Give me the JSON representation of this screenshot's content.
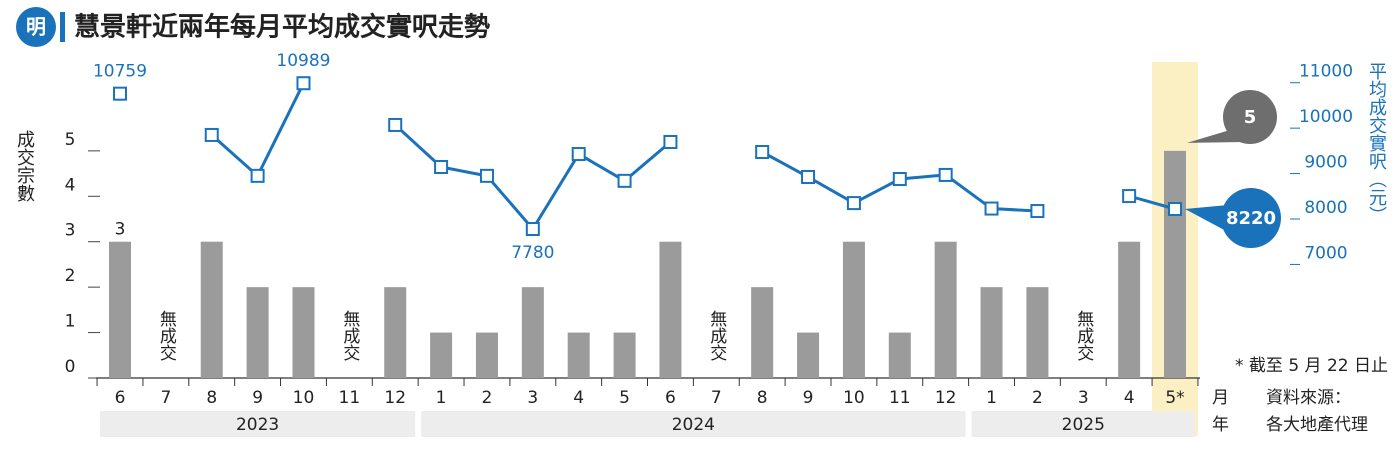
{
  "logo": "明",
  "chart_data": {
    "type": "bar-line",
    "title": "慧景軒近兩年每月平均成交實呎走勢",
    "category_groups": [
      {
        "label": "2023",
        "categories": [
          "6",
          "7",
          "8",
          "9",
          "10",
          "11",
          "12"
        ]
      },
      {
        "label": "2024",
        "categories": [
          "1",
          "2",
          "3",
          "4",
          "5",
          "6",
          "7",
          "8",
          "9",
          "10",
          "11",
          "12"
        ]
      },
      {
        "label": "2025",
        "categories": [
          "1",
          "2",
          "3",
          "4",
          "5*"
        ]
      }
    ],
    "x_unit_labels": [
      "月",
      "年"
    ],
    "ylabel": "成交宗數",
    "y2label": "平均成交實呎（元）",
    "ylim": [
      0,
      7
    ],
    "yticks": [
      0,
      1,
      2,
      3,
      4,
      5
    ],
    "y2lim": [
      4500,
      11500
    ],
    "y2ticks": [
      7000,
      8000,
      9000,
      10000,
      11000
    ],
    "series": [
      {
        "name": "成交宗數",
        "color": "#9b9b9b",
        "values": [
          3,
          0,
          3,
          2,
          2,
          0,
          2,
          1,
          1,
          2,
          1,
          1,
          3,
          0,
          2,
          1,
          3,
          1,
          3,
          2,
          2,
          0,
          3,
          5
        ],
        "value_labels": [
          "3",
          "無成交",
          null,
          null,
          null,
          "無成交",
          null,
          null,
          null,
          null,
          null,
          null,
          null,
          "無成交",
          null,
          null,
          null,
          null,
          null,
          null,
          null,
          "無成交",
          null,
          "5"
        ]
      },
      {
        "name": "平均成交實呎",
        "color": "#1a72bb",
        "axis": "y2",
        "values": [
          10759,
          null,
          9850,
          8950,
          10989,
          null,
          10070,
          9145,
          8950,
          7780,
          9430,
          8840,
          9695,
          null,
          9475,
          8925,
          8350,
          8880,
          8970,
          8230,
          8175,
          null,
          8505,
          8220
        ],
        "value_labels": [
          "10759",
          null,
          null,
          null,
          "10989",
          null,
          null,
          null,
          null,
          "7780",
          null,
          null,
          null,
          null,
          null,
          null,
          null,
          null,
          null,
          null,
          null,
          null,
          null,
          "8220"
        ]
      }
    ],
    "note": "* 截至 5 月 22 日止",
    "source": [
      "資料來源：",
      "各大地產代理"
    ]
  }
}
